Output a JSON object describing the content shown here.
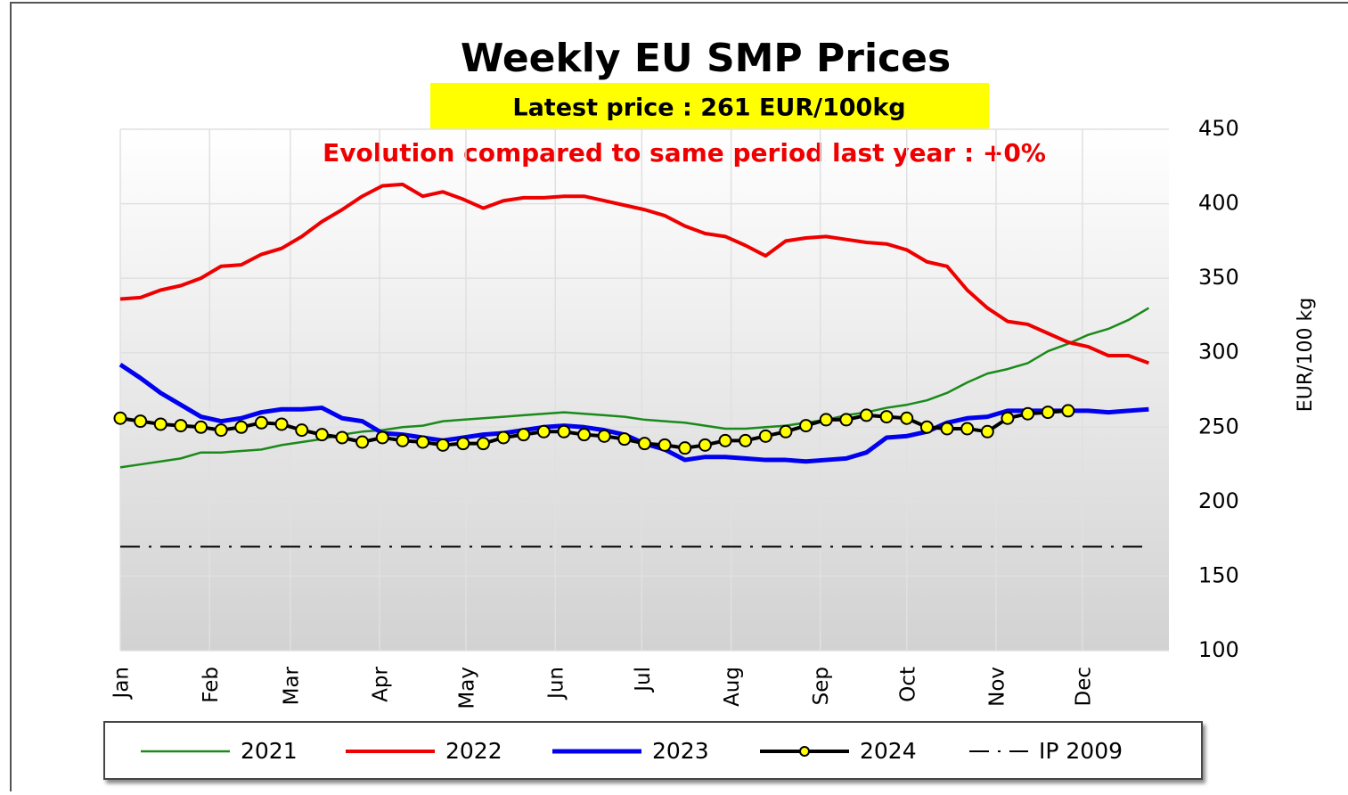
{
  "chart_data": {
    "type": "line",
    "title": "Weekly EU SMP Prices",
    "subtitle": "Latest price : 261 EUR/100kg",
    "annotation": "Evolution compared to same period last year : +0%",
    "y_label": "EUR/100 kg",
    "x": [
      0,
      1,
      2,
      3,
      4,
      5,
      6,
      7,
      8,
      9,
      10,
      11,
      12,
      13,
      14,
      15,
      16,
      17,
      18,
      19,
      20,
      21,
      22,
      23,
      24,
      25,
      26,
      27,
      28,
      29,
      30,
      31,
      32,
      33,
      34,
      35,
      36,
      37,
      38,
      39,
      40,
      41,
      42,
      43,
      44,
      45,
      46,
      47,
      48,
      49,
      50,
      51
    ],
    "xlim": [
      0,
      52
    ],
    "xticks": [
      {
        "value": 0,
        "label": "Jan"
      },
      {
        "value": 4.43,
        "label": "Feb"
      },
      {
        "value": 8.43,
        "label": "Mar"
      },
      {
        "value": 12.86,
        "label": "Apr"
      },
      {
        "value": 17.14,
        "label": "May"
      },
      {
        "value": 21.57,
        "label": "Jun"
      },
      {
        "value": 25.86,
        "label": "Jul"
      },
      {
        "value": 30.29,
        "label": "Aug"
      },
      {
        "value": 34.71,
        "label": "Sep"
      },
      {
        "value": 39,
        "label": "Oct"
      },
      {
        "value": 43.43,
        "label": "Nov"
      },
      {
        "value": 47.71,
        "label": "Dec"
      }
    ],
    "ylim": [
      100,
      450
    ],
    "yticks": [
      100,
      150,
      200,
      250,
      300,
      350,
      400,
      450
    ],
    "grid": true,
    "legend": "bottom",
    "series": [
      {
        "name": "2021",
        "color": "#1a8a1a",
        "style": "thin",
        "values": [
          223,
          225,
          227,
          229,
          233,
          233,
          234,
          235,
          238,
          240,
          242,
          245,
          247,
          248,
          250,
          251,
          254,
          255,
          256,
          257,
          258,
          259,
          260,
          259,
          258,
          257,
          255,
          254,
          253,
          251,
          249,
          249,
          250,
          251,
          253,
          255,
          258,
          260,
          263,
          265,
          268,
          273,
          280,
          286,
          289,
          293,
          301,
          306,
          312,
          316,
          322,
          330
        ]
      },
      {
        "name": "2022",
        "color": "#ee0000",
        "style": "thick",
        "values": [
          336,
          337,
          342,
          345,
          350,
          358,
          359,
          366,
          370,
          378,
          388,
          396,
          405,
          412,
          413,
          405,
          408,
          403,
          397,
          402,
          404,
          404,
          405,
          405,
          402,
          399,
          396,
          392,
          385,
          380,
          378,
          372,
          365,
          375,
          377,
          378,
          376,
          374,
          373,
          369,
          361,
          358,
          342,
          330,
          321,
          319,
          313,
          307,
          304,
          298,
          298,
          293
        ]
      },
      {
        "name": "2023",
        "color": "#0000ee",
        "style": "bold",
        "values": [
          292,
          283,
          273,
          265,
          257,
          254,
          256,
          260,
          262,
          262,
          263,
          256,
          254,
          246,
          245,
          243,
          241,
          243,
          245,
          246,
          248,
          250,
          251,
          250,
          248,
          245,
          239,
          235,
          228,
          230,
          230,
          229,
          228,
          228,
          227,
          228,
          229,
          233,
          243,
          244,
          247,
          253,
          256,
          257,
          261,
          261,
          261,
          261,
          261,
          260,
          261,
          262
        ]
      },
      {
        "name": "2024",
        "color": "#000000",
        "marker_color": "#ffff00",
        "style": "marker",
        "values": [
          256,
          254,
          252,
          251,
          250,
          248,
          250,
          253,
          252,
          248,
          245,
          243,
          240,
          243,
          241,
          240,
          238,
          239,
          239,
          243,
          245,
          247,
          247,
          245,
          244,
          242,
          239,
          238,
          236,
          238,
          241,
          241,
          244,
          247,
          251,
          255,
          255,
          258,
          257,
          256,
          250,
          249,
          249,
          247,
          256,
          259,
          260,
          261,
          null,
          null,
          null,
          null
        ]
      },
      {
        "name": "IP 2009",
        "color": "#000000",
        "style": "dashdot",
        "values": [
          169.8,
          169.8,
          169.8,
          169.8,
          169.8,
          169.8,
          169.8,
          169.8,
          169.8,
          169.8,
          169.8,
          169.8,
          169.8,
          169.8,
          169.8,
          169.8,
          169.8,
          169.8,
          169.8,
          169.8,
          169.8,
          169.8,
          169.8,
          169.8,
          169.8,
          169.8,
          169.8,
          169.8,
          169.8,
          169.8,
          169.8,
          169.8,
          169.8,
          169.8,
          169.8,
          169.8,
          169.8,
          169.8,
          169.8,
          169.8,
          169.8,
          169.8,
          169.8,
          169.8,
          169.8,
          169.8,
          169.8,
          169.8,
          169.8,
          169.8,
          169.8,
          169.8
        ]
      }
    ]
  }
}
